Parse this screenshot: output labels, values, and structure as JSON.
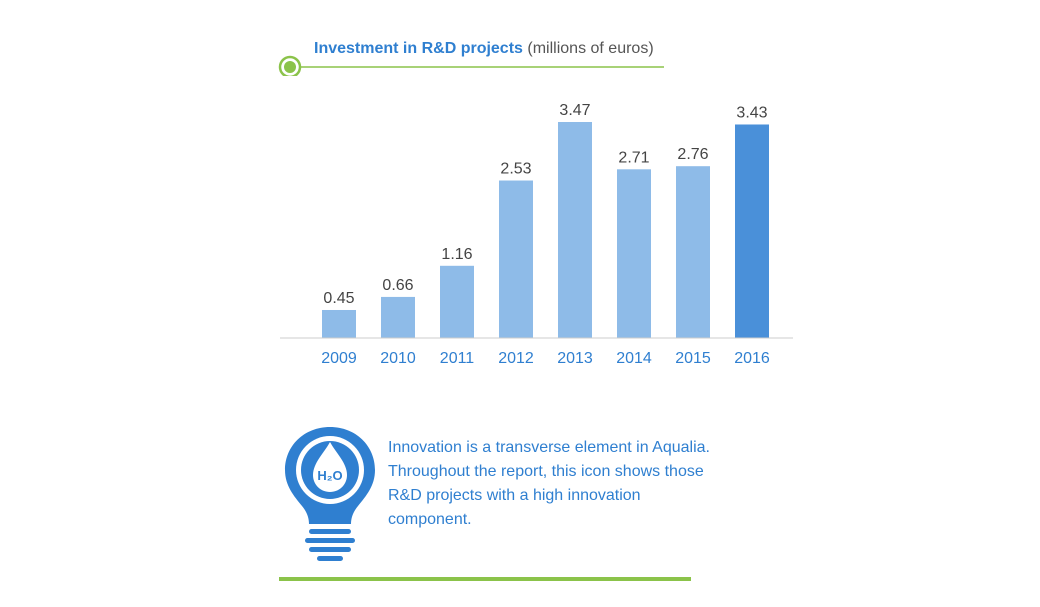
{
  "header": {
    "title_main": "Investment in R&D projects",
    "title_unit": "(millions of euros)"
  },
  "chart_data": {
    "type": "bar",
    "title": "Investment in R&D projects (millions of euros)",
    "categories": [
      "2009",
      "2010",
      "2011",
      "2012",
      "2013",
      "2014",
      "2015",
      "2016"
    ],
    "values": [
      0.45,
      0.66,
      1.16,
      2.53,
      3.47,
      2.71,
      2.76,
      3.43
    ],
    "value_labels": [
      "0.45",
      "0.66",
      "1.16",
      "2.53",
      "3.47",
      "2.71",
      "2.76",
      "3.43"
    ],
    "highlight_category": "2016",
    "xlabel": "",
    "ylabel": "",
    "ylim": [
      0,
      3.47
    ],
    "grid": false,
    "legend": "none",
    "colors": {
      "bar": "#8ebbe8",
      "bar_highlight": "#4a90d9",
      "axis": "#cccccc",
      "tick_label": "#2f7fd0",
      "value_label": "#444444",
      "accent_green": "#8bc34a"
    }
  },
  "info": {
    "icon": "lightbulb-water-drop-icon",
    "icon_text": "H₂O",
    "text": "Innovation is a transverse element in Aqualia. Throughout the report, this icon shows those R&D projects with a high innovation component."
  }
}
